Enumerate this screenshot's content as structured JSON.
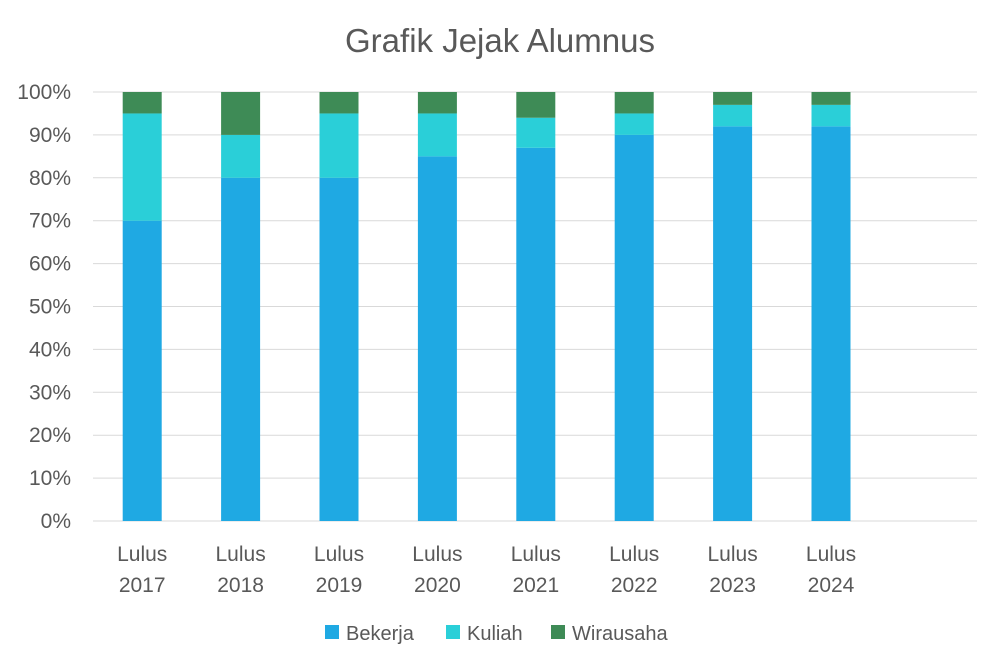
{
  "chart_data": {
    "type": "bar",
    "stacked": true,
    "title": "Grafik Jejak Alumnus",
    "xlabel": "",
    "ylabel": "",
    "ylim": [
      0,
      100
    ],
    "y_ticks": [
      "0%",
      "10%",
      "20%",
      "30%",
      "40%",
      "50%",
      "60%",
      "70%",
      "80%",
      "90%",
      "100%"
    ],
    "categories": [
      [
        "Lulus",
        "2017"
      ],
      [
        "Lulus",
        "2018"
      ],
      [
        "Lulus",
        "2019"
      ],
      [
        "Lulus",
        "2020"
      ],
      [
        "Lulus",
        "2021"
      ],
      [
        "Lulus",
        "2022"
      ],
      [
        "Lulus",
        "2023"
      ],
      [
        "Lulus",
        "2024"
      ]
    ],
    "series": [
      {
        "name": "Bekerja",
        "color": "#1fa9e3",
        "values": [
          70,
          80,
          80,
          85,
          87,
          90,
          92,
          92
        ]
      },
      {
        "name": "Kuliah",
        "color": "#2acfd8",
        "values": [
          25,
          10,
          15,
          10,
          7,
          5,
          5,
          5
        ]
      },
      {
        "name": "Wirausaha",
        "color": "#3e8b56",
        "values": [
          5,
          10,
          5,
          5,
          6,
          5,
          3,
          3
        ]
      }
    ],
    "grid": true,
    "legend_position": "bottom"
  }
}
